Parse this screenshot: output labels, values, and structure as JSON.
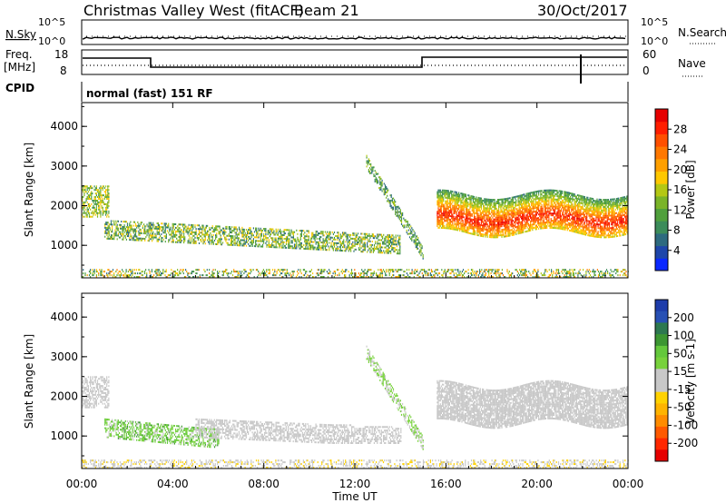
{
  "header": {
    "title": "Christmas Valley West (fitACF)",
    "beam": "Beam 21",
    "date": "30/Oct/2017"
  },
  "panels": {
    "nsky": {
      "left_label": "N.Sky",
      "right_label": "N.Search",
      "left_ticks": [
        "10^5",
        "10^0"
      ],
      "right_ticks": [
        "10^5",
        "10^0"
      ]
    },
    "freq": {
      "left_label_1": "Freq.",
      "left_label_2": "[MHz]",
      "right_label": "Nave",
      "left_ticks": [
        "18",
        "8"
      ],
      "right_ticks": [
        "60",
        "0"
      ]
    },
    "cpid": {
      "label": "CPID",
      "text": "normal (fast) 151 RF"
    }
  },
  "axes": {
    "xlabel": "Time UT",
    "x_ticks": [
      "00:00",
      "04:00",
      "08:00",
      "12:00",
      "16:00",
      "20:00",
      "00:00"
    ],
    "ylabel": "Slant Range [km]",
    "y_ticks": [
      "1000",
      "2000",
      "3000",
      "4000"
    ]
  },
  "colorbars": {
    "power": {
      "label": "Power [dB]",
      "ticks": [
        "4",
        "8",
        "12",
        "16",
        "20",
        "24",
        "28"
      ],
      "colors": [
        "#0a28ff",
        "#1e46aa",
        "#2d6a7f",
        "#3c8c5a",
        "#50a03c",
        "#7ab428",
        "#b4c814",
        "#ffc800",
        "#ffa000",
        "#ff7800",
        "#ff5000",
        "#ff1e00",
        "#e60000"
      ]
    },
    "velocity": {
      "label": "Velocity [m s-1]",
      "ticks": [
        "200",
        "100",
        "50",
        "15",
        "-15",
        "-50",
        "-100",
        "-200"
      ],
      "colors": [
        "#1e3caa",
        "#2850b4",
        "#2d7850",
        "#3c9632",
        "#64c83c",
        "#78d23c",
        "#c8c8c8",
        "#c8c8c8",
        "#ffd200",
        "#ffb400",
        "#ff8c00",
        "#ff5a00",
        "#ff2800",
        "#e60000"
      ]
    }
  },
  "chart_data": [
    {
      "type": "heatmap",
      "title": "Power [dB]",
      "xlabel": "Time UT",
      "ylabel": "Slant Range [km]",
      "xlim": [
        0,
        24
      ],
      "ylim": [
        180,
        4600
      ],
      "colorbar": {
        "label": "Power [dB]",
        "range": [
          0,
          32
        ],
        "ticks": [
          4,
          8,
          12,
          16,
          20,
          24,
          28
        ]
      },
      "features": [
        {
          "name": "early-blob",
          "t_start": 0.0,
          "t_end": 1.2,
          "range_start": 1700,
          "range_end": 2500,
          "power": [
            8,
            20
          ]
        },
        {
          "name": "ground-scatter-band",
          "t_start": 1.0,
          "t_end": 14.0,
          "range_start": 650,
          "range_end": 1500,
          "power": [
            4,
            20
          ]
        },
        {
          "name": "diagonal-feature",
          "t_start": 12.5,
          "t_end": 15.0,
          "range_start": 800,
          "range_end": 3100,
          "power": [
            4,
            16
          ]
        },
        {
          "name": "main-scatter-band",
          "t_start": 15.6,
          "t_end": 24.0,
          "range_start": 1200,
          "range_end": 2500,
          "power": [
            12,
            30
          ]
        },
        {
          "name": "near-range-clutter",
          "t_start": 0.0,
          "t_end": 24.0,
          "range_start": 180,
          "range_end": 400,
          "power": [
            4,
            24
          ]
        }
      ]
    },
    {
      "type": "heatmap",
      "title": "Velocity [m s-1]",
      "xlabel": "Time UT",
      "ylabel": "Slant Range [km]",
      "xlim": [
        0,
        24
      ],
      "ylim": [
        180,
        4600
      ],
      "colorbar": {
        "label": "Velocity [m s-1]",
        "range": [
          -200,
          200
        ],
        "ticks": [
          200,
          100,
          50,
          15,
          -15,
          -50,
          -100,
          -200
        ]
      },
      "features": [
        {
          "name": "early-blob",
          "t_start": 0.0,
          "t_end": 1.2,
          "range_start": 1700,
          "range_end": 2500,
          "velocity": [
            -15,
            15
          ]
        },
        {
          "name": "positive-velocity-band",
          "t_start": 1.0,
          "t_end": 6.0,
          "range_start": 700,
          "range_end": 1300,
          "velocity": [
            15,
            100
          ]
        },
        {
          "name": "ground-scatter-band",
          "t_start": 5.0,
          "t_end": 14.0,
          "range_start": 800,
          "range_end": 1300,
          "velocity": [
            -15,
            15
          ]
        },
        {
          "name": "diagonal-feature",
          "t_start": 12.5,
          "t_end": 15.0,
          "range_start": 800,
          "range_end": 3100,
          "velocity": [
            15,
            50
          ]
        },
        {
          "name": "main-scatter-band",
          "t_start": 15.6,
          "t_end": 24.0,
          "range_start": 1200,
          "range_end": 2500,
          "velocity": [
            -15,
            15
          ]
        },
        {
          "name": "near-range-clutter",
          "t_start": 0.0,
          "t_end": 24.0,
          "range_start": 180,
          "range_end": 400,
          "velocity": [
            -50,
            15
          ]
        }
      ]
    }
  ]
}
